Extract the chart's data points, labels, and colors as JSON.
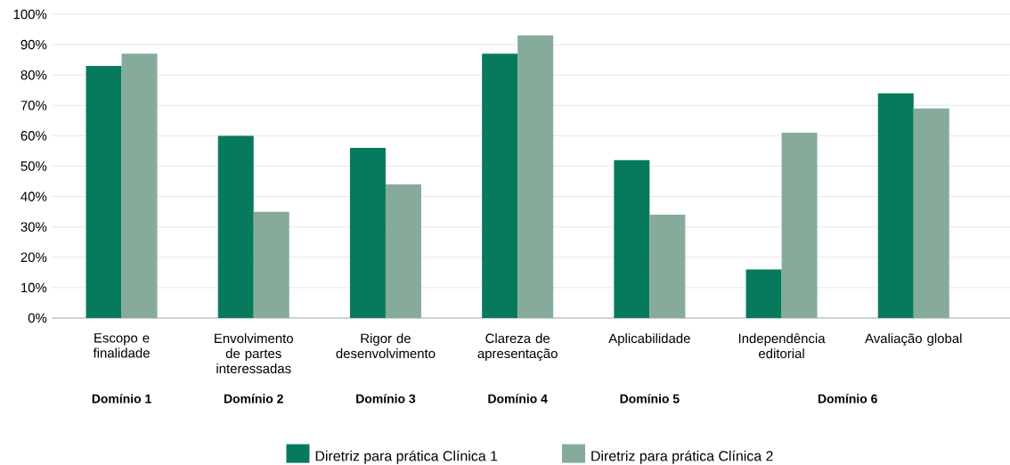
{
  "chart_data": {
    "type": "bar",
    "categories": [
      "Escopo e finalidade",
      "Envolvimento de partes interessadas",
      "Rigor de desenvolvimento",
      "Clareza de apresentação",
      "Aplicabilidade",
      "Independência editorial",
      "Avaliação global"
    ],
    "series": [
      {
        "name": "Diretriz para prática Clínica 1",
        "color": "#077a5e",
        "values": [
          83,
          60,
          56,
          87,
          52,
          16,
          74
        ]
      },
      {
        "name": "Diretriz para prática Clínica 2",
        "color": "#86ab9a",
        "values": [
          87,
          35,
          44,
          93,
          34,
          61,
          69
        ]
      }
    ],
    "ylim": [
      0,
      100
    ],
    "yticks": [
      {
        "value": 0,
        "label": "0%"
      },
      {
        "value": 10,
        "label": "10%"
      },
      {
        "value": 20,
        "label": "20%"
      },
      {
        "value": 30,
        "label": "30%"
      },
      {
        "value": 40,
        "label": "40%"
      },
      {
        "value": 50,
        "label": "50%"
      },
      {
        "value": 60,
        "label": "60%"
      },
      {
        "value": 70,
        "label": "70%"
      },
      {
        "value": 80,
        "label": "80%"
      },
      {
        "value": 90,
        "label": "90%"
      },
      {
        "value": 100,
        "label": "100%"
      }
    ],
    "annotations": [
      "Domínio 1",
      "Domínio 2",
      "Domínio 3",
      "Domínio 4",
      "Domínio 5",
      "Domínio 6"
    ],
    "grid": "y",
    "legend": "bottom"
  }
}
